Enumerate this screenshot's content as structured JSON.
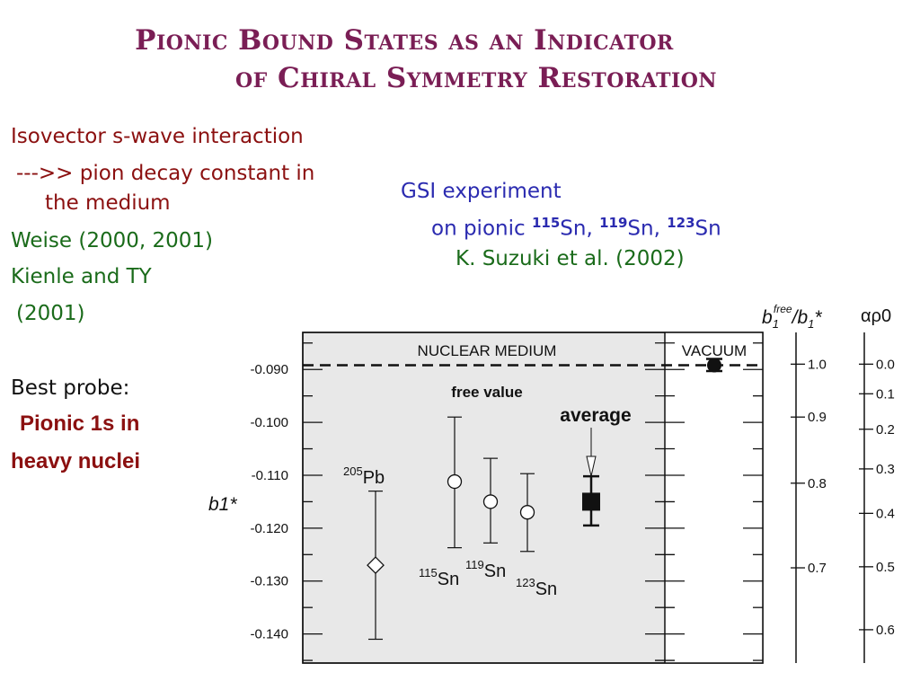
{
  "slide": {
    "title_line1": "Pionic Bound States as an Indicator",
    "title_line2": "of Chiral Symmetry Restoration",
    "left": {
      "l1": "Isovector s-wave interaction",
      "l2": "--->> pion decay constant in",
      "l3": "the medium",
      "l4": "Weise (2000, 2001)",
      "l5": "Kienle and TY",
      "l6": "(2001)",
      "l7": "Best probe:",
      "l8": "Pionic 1s in",
      "l9": "heavy nuclei"
    },
    "gsi": {
      "l1": "GSI experiment",
      "l2_prefix": "on pionic ",
      "m1": "115",
      "e1": "Sn, ",
      "m2": "119",
      "e2": "Sn, ",
      "m3": "123",
      "e3": "Sn",
      "l3": "K. Suzuki et al. (2002)"
    }
  },
  "colors": {
    "title": "#7a1e55",
    "red": "#8b1010",
    "green": "#1a6b1a",
    "blue": "#2b2bb0",
    "panel": "#e8e8e8"
  },
  "chart_data": {
    "type": "scatter",
    "ylabel": "b1*",
    "ylim": [
      -0.1455,
      -0.083
    ],
    "yticks": [
      -0.09,
      -0.1,
      -0.11,
      -0.12,
      -0.13,
      -0.14
    ],
    "ytick_labels": [
      "-0.090",
      "-0.100",
      "-0.110",
      "-0.120",
      "-0.130",
      "-0.140"
    ],
    "region_labels": [
      "NUCLEAR MEDIUM",
      "VACUUM"
    ],
    "free_value": {
      "y": -0.0892,
      "label": "free value"
    },
    "average_label": "average",
    "points": [
      {
        "name": "205Pb",
        "mass": "205",
        "el": "Pb",
        "y": -0.127,
        "lo": -0.141,
        "hi": -0.113,
        "marker": "diamond"
      },
      {
        "name": "115Sn",
        "mass": "115",
        "el": "Sn",
        "y": -0.1112,
        "lo": -0.1237,
        "hi": -0.099,
        "marker": "circle"
      },
      {
        "name": "119Sn",
        "mass": "119",
        "el": "Sn",
        "y": -0.115,
        "lo": -0.1228,
        "hi": -0.1068,
        "marker": "circle"
      },
      {
        "name": "123Sn",
        "mass": "123",
        "el": "Sn",
        "y": -0.117,
        "lo": -0.1244,
        "hi": -0.1097,
        "marker": "circle"
      },
      {
        "name": "average",
        "y": -0.115,
        "lo": -0.1195,
        "hi": -0.1102,
        "marker": "square"
      },
      {
        "name": "vacuum",
        "y": -0.0892,
        "lo": -0.0903,
        "hi": -0.088,
        "marker": "filled-circle"
      }
    ],
    "axis2": {
      "label_base": "b",
      "label_sub": "1",
      "label_sup": "free",
      "label_tail": "/b",
      "label_tail_sub": "1",
      "label_star": "*",
      "ticks": [
        {
          "label": "1.0",
          "y": -0.089
        },
        {
          "label": "0.9",
          "y": -0.099
        },
        {
          "label": "0.8",
          "y": -0.1115
        },
        {
          "label": "0.7",
          "y": -0.1275
        }
      ]
    },
    "axis3": {
      "label": "αρ0",
      "ticks": [
        {
          "label": "0.0",
          "y": -0.089
        },
        {
          "label": "0.1",
          "y": -0.0946
        },
        {
          "label": "0.2",
          "y": -0.1013
        },
        {
          "label": "0.3",
          "y": -0.1088
        },
        {
          "label": "0.4",
          "y": -0.1172
        },
        {
          "label": "0.5",
          "y": -0.1273
        },
        {
          "label": "0.6",
          "y": -0.1392
        }
      ]
    }
  }
}
